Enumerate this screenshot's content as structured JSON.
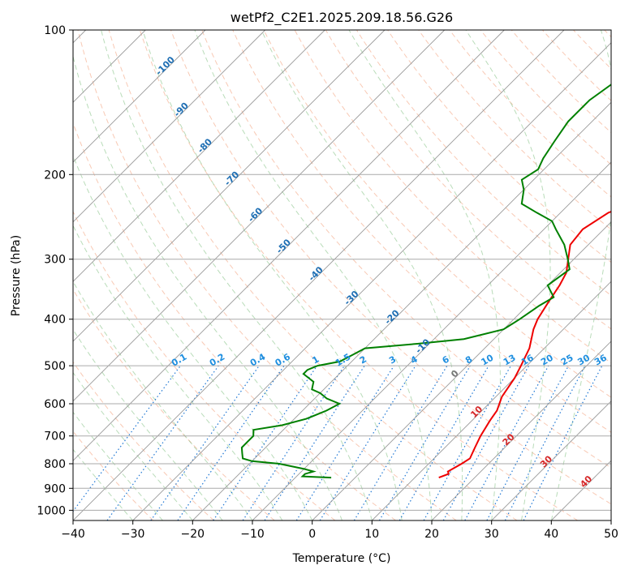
{
  "chart_data": {
    "type": "line",
    "title": "wetPf2_C2E1.2025.209.18.56.G26",
    "xlabel": "Temperature (°C)",
    "ylabel": "Pressure (hPa)",
    "xlim": [
      -40,
      50
    ],
    "ylim": [
      1050,
      100
    ],
    "y_scale": "log",
    "skew": true,
    "grid": true,
    "x_ticks": [
      -40,
      -30,
      -20,
      -10,
      0,
      10,
      20,
      30,
      40,
      50
    ],
    "y_ticks": [
      100,
      200,
      300,
      400,
      500,
      600,
      700,
      800,
      900,
      1000
    ],
    "isotherm_labels": [
      "-100",
      "-90",
      "-80",
      "-70",
      "-60",
      "-50",
      "-40",
      "-30",
      "-20",
      "-10",
      "0",
      "10",
      "20",
      "30",
      "40"
    ],
    "mixing_ratio_labels": [
      "0.1",
      "0.2",
      "0.4",
      "0.6",
      "1",
      "1.5",
      "2",
      "3",
      "4",
      "6",
      "8",
      "10",
      "13",
      "16",
      "20",
      "25",
      "30",
      "36"
    ],
    "series": [
      {
        "role": "temperature",
        "color": "#ee0000",
        "points": [
          [
            14,
            855
          ],
          [
            15,
            840
          ],
          [
            14.5,
            830
          ],
          [
            15.5,
            800
          ],
          [
            16,
            780
          ],
          [
            15,
            740
          ],
          [
            14,
            700
          ],
          [
            13,
            650
          ],
          [
            12.5,
            620
          ],
          [
            11,
            580
          ],
          [
            10,
            530
          ],
          [
            9,
            500
          ],
          [
            7.5,
            460
          ],
          [
            5,
            420
          ],
          [
            4,
            400
          ],
          [
            3,
            370
          ],
          [
            2,
            340
          ],
          [
            1,
            320
          ],
          [
            -3,
            280
          ],
          [
            -3.5,
            260
          ],
          [
            -2,
            240
          ],
          [
            2,
            225
          ],
          [
            6,
            215
          ],
          [
            8,
            205
          ],
          [
            8,
            195
          ],
          [
            8,
            185
          ],
          [
            8,
            175
          ],
          [
            8,
            160
          ],
          [
            8,
            145
          ],
          [
            8,
            130
          ],
          [
            7,
            120
          ],
          [
            6,
            110
          ],
          [
            5,
            100
          ]
        ]
      },
      {
        "role": "dewpoint",
        "color": "#008000",
        "points": [
          [
            -4,
            855
          ],
          [
            -9,
            850
          ],
          [
            -9,
            840
          ],
          [
            -8,
            830
          ],
          [
            -10,
            820
          ],
          [
            -15,
            800
          ],
          [
            -20,
            790
          ],
          [
            -22,
            780
          ],
          [
            -23,
            760
          ],
          [
            -24,
            740
          ],
          [
            -24,
            720
          ],
          [
            -24,
            700
          ],
          [
            -25,
            680
          ],
          [
            -21,
            665
          ],
          [
            -18,
            645
          ],
          [
            -16,
            620
          ],
          [
            -15,
            600
          ],
          [
            -18,
            585
          ],
          [
            -20,
            570
          ],
          [
            -22,
            560
          ],
          [
            -23,
            540
          ],
          [
            -26,
            520
          ],
          [
            -26,
            510
          ],
          [
            -25,
            500
          ],
          [
            -22,
            490
          ],
          [
            -21,
            475
          ],
          [
            -20,
            460
          ],
          [
            -12,
            450
          ],
          [
            -5,
            440
          ],
          [
            0,
            420
          ],
          [
            1,
            400
          ],
          [
            2,
            375
          ],
          [
            3,
            360
          ],
          [
            0,
            340
          ],
          [
            1,
            315
          ],
          [
            -1,
            300
          ],
          [
            -4,
            280
          ],
          [
            -8,
            260
          ],
          [
            -10,
            250
          ],
          [
            -14,
            240
          ],
          [
            -18,
            230
          ],
          [
            -20,
            215
          ],
          [
            -22,
            205
          ],
          [
            -21,
            195
          ],
          [
            -22,
            185
          ],
          [
            -23,
            170
          ],
          [
            -24,
            155
          ],
          [
            -24,
            140
          ],
          [
            -23,
            130
          ],
          [
            -22,
            120
          ],
          [
            -21,
            110
          ],
          [
            -20,
            100
          ]
        ]
      }
    ]
  }
}
